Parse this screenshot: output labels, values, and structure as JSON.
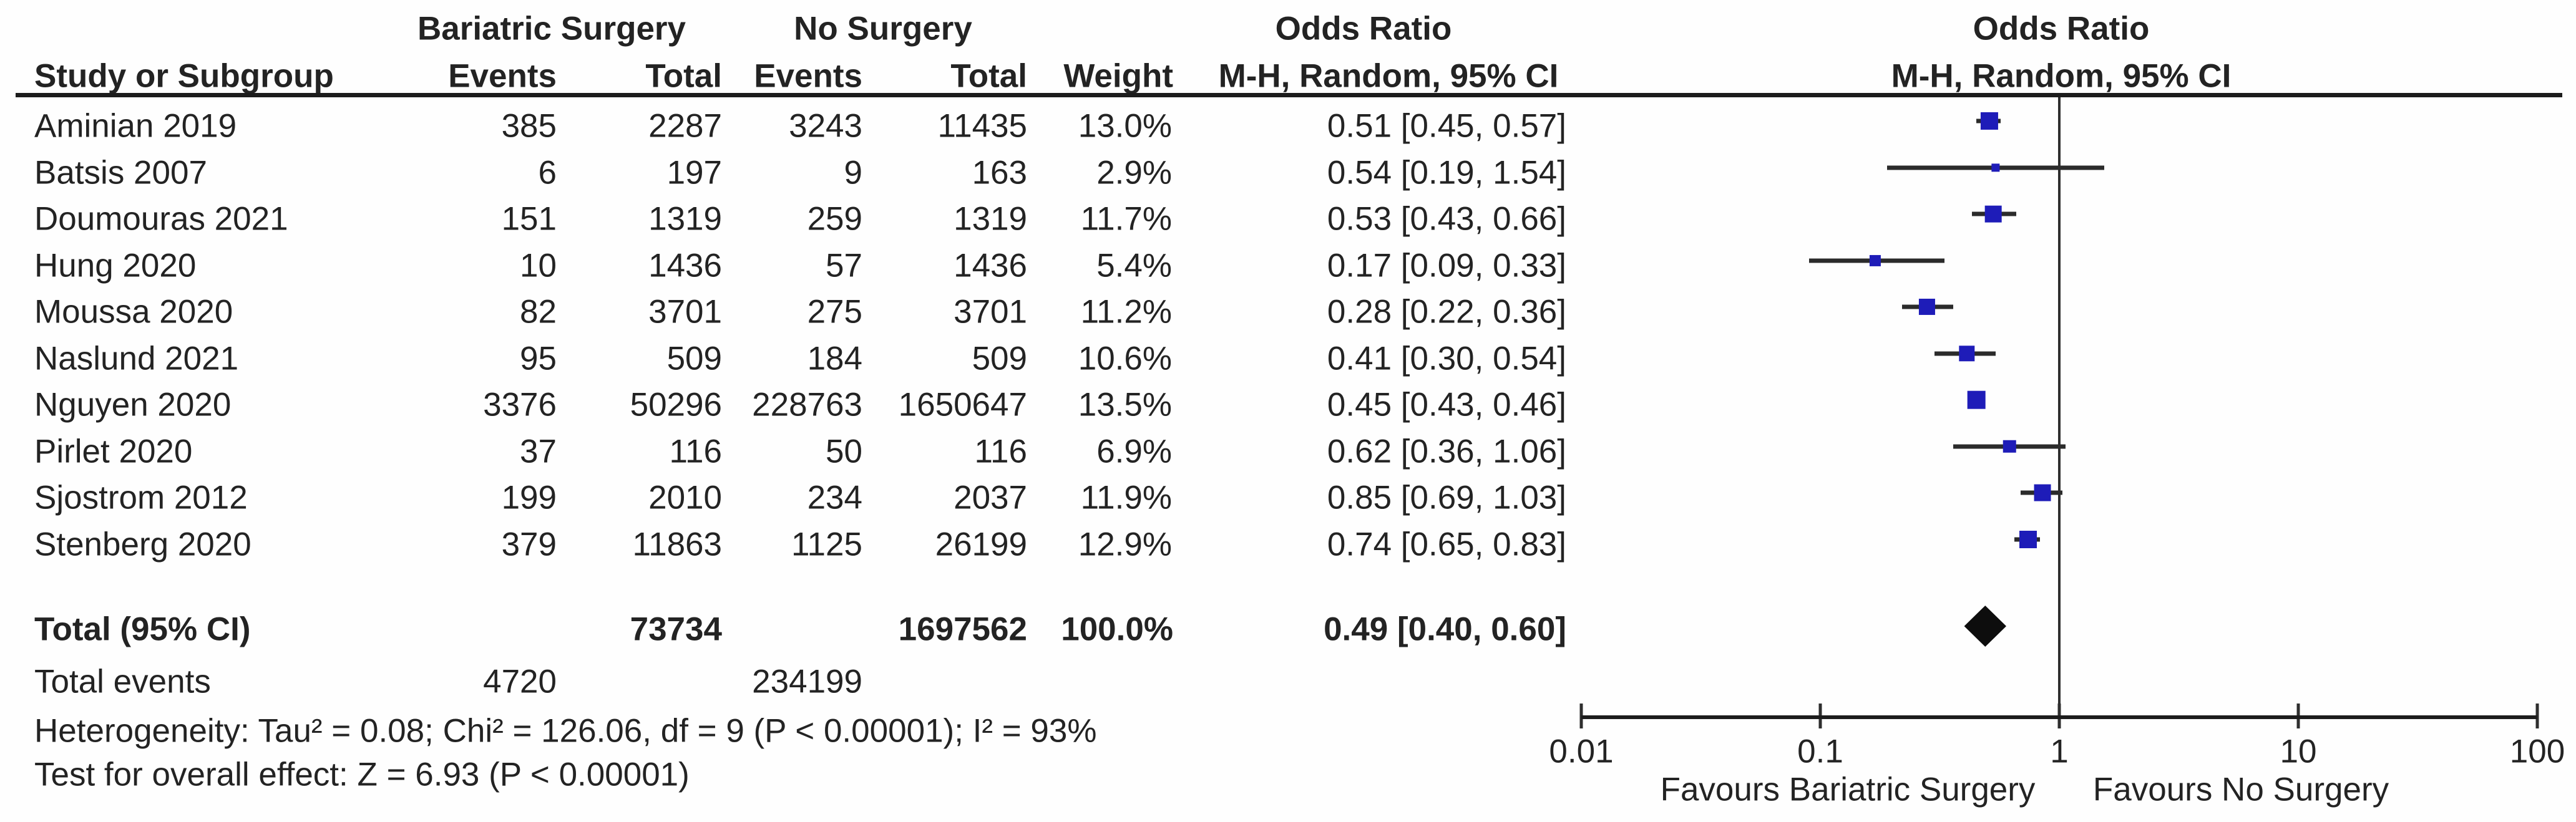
{
  "header": {
    "group1": "Bariatric Surgery",
    "group2": "No Surgery",
    "odds_ratio_text_col": "Odds Ratio",
    "odds_ratio_plot_col": "Odds Ratio",
    "method_text_col": "M-H, Random, 95% CI",
    "method_plot_col": "M-H, Random, 95% CI",
    "study_col": "Study or Subgroup",
    "events_col_1": "Events",
    "total_col_1": "Total",
    "events_col_2": "Events",
    "total_col_2": "Total",
    "weight_col": "Weight"
  },
  "chart_data": {
    "type": "forest",
    "effect_measure": "Odds Ratio",
    "model": "M-H, Random, 95% CI",
    "x_axis": {
      "scale": "log",
      "ticks": [
        0.01,
        0.1,
        1,
        10,
        100
      ],
      "tick_labels": [
        "0.01",
        "0.1",
        "1",
        "10",
        "100"
      ],
      "null_line": 1
    },
    "favours_left": "Favours Bariatric Surgery",
    "favours_right": "Favours No Surgery",
    "studies": [
      {
        "name": "Aminian 2019",
        "e1": "385",
        "t1": "2287",
        "e2": "3243",
        "t2": "11435",
        "weight": "13.0%",
        "or_text": "0.51 [0.45, 0.57]",
        "or": 0.51,
        "lo": 0.45,
        "hi": 0.57
      },
      {
        "name": "Batsis 2007",
        "e1": "6",
        "t1": "197",
        "e2": "9",
        "t2": "163",
        "weight": "2.9%",
        "or_text": "0.54 [0.19, 1.54]",
        "or": 0.54,
        "lo": 0.19,
        "hi": 1.54
      },
      {
        "name": "Doumouras 2021",
        "e1": "151",
        "t1": "1319",
        "e2": "259",
        "t2": "1319",
        "weight": "11.7%",
        "or_text": "0.53 [0.43, 0.66]",
        "or": 0.53,
        "lo": 0.43,
        "hi": 0.66
      },
      {
        "name": "Hung 2020",
        "e1": "10",
        "t1": "1436",
        "e2": "57",
        "t2": "1436",
        "weight": "5.4%",
        "or_text": "0.17 [0.09, 0.33]",
        "or": 0.17,
        "lo": 0.09,
        "hi": 0.33
      },
      {
        "name": "Moussa 2020",
        "e1": "82",
        "t1": "3701",
        "e2": "275",
        "t2": "3701",
        "weight": "11.2%",
        "or_text": "0.28 [0.22, 0.36]",
        "or": 0.28,
        "lo": 0.22,
        "hi": 0.36
      },
      {
        "name": "Naslund 2021",
        "e1": "95",
        "t1": "509",
        "e2": "184",
        "t2": "509",
        "weight": "10.6%",
        "or_text": "0.41 [0.30, 0.54]",
        "or": 0.41,
        "lo": 0.3,
        "hi": 0.54
      },
      {
        "name": "Nguyen 2020",
        "e1": "3376",
        "t1": "50296",
        "e2": "228763",
        "t2": "1650647",
        "weight": "13.5%",
        "or_text": "0.45 [0.43, 0.46]",
        "or": 0.45,
        "lo": 0.43,
        "hi": 0.46
      },
      {
        "name": "Pirlet 2020",
        "e1": "37",
        "t1": "116",
        "e2": "50",
        "t2": "116",
        "weight": "6.9%",
        "or_text": "0.62 [0.36, 1.06]",
        "or": 0.62,
        "lo": 0.36,
        "hi": 1.06
      },
      {
        "name": "Sjostrom 2012",
        "e1": "199",
        "t1": "2010",
        "e2": "234",
        "t2": "2037",
        "weight": "11.9%",
        "or_text": "0.85 [0.69, 1.03]",
        "or": 0.85,
        "lo": 0.69,
        "hi": 1.03
      },
      {
        "name": "Stenberg 2020",
        "e1": "379",
        "t1": "11863",
        "e2": "1125",
        "t2": "26199",
        "weight": "12.9%",
        "or_text": "0.74 [0.65, 0.83]",
        "or": 0.74,
        "lo": 0.65,
        "hi": 0.83
      }
    ],
    "total": {
      "label": "Total (95% CI)",
      "t1": "73734",
      "t2": "1697562",
      "weight": "100.0%",
      "or_text": "0.49 [0.40, 0.60]",
      "or": 0.49,
      "lo": 0.4,
      "hi": 0.6
    },
    "total_events": {
      "label": "Total events",
      "e1": "4720",
      "e2": "234199"
    },
    "heterogeneity": "Heterogeneity: Tau² = 0.08; Chi² = 126.06, df = 9 (P < 0.00001); I² = 93%",
    "overall_effect": "Test for overall effect: Z = 6.93 (P < 0.00001)",
    "colors": {
      "marker_blue": "#1e1cb8",
      "diamond_black": "#0d0d0d",
      "line_dark": "#2b2b2b"
    }
  }
}
